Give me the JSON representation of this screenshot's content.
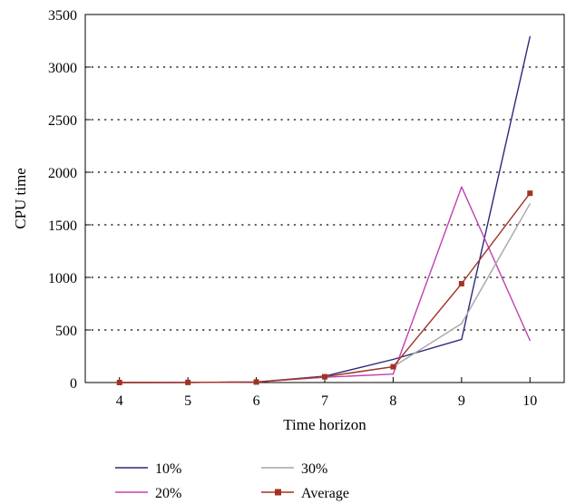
{
  "chart_data": {
    "type": "line",
    "xlabel": "Time horizon",
    "ylabel": "CPU time",
    "x": [
      4,
      5,
      6,
      7,
      8,
      9,
      10
    ],
    "xlim": [
      3.5,
      10.5
    ],
    "ylim": [
      0,
      3500
    ],
    "xticks": [
      "4",
      "5",
      "6",
      "7",
      "8",
      "9",
      "10"
    ],
    "yticks": [
      "0",
      "500",
      "1000",
      "1500",
      "2000",
      "2500",
      "3000",
      "3500"
    ],
    "grid": "horizontal-dotted",
    "legend_position": "bottom",
    "series": [
      {
        "name": "10%",
        "color": "#2a2a7a",
        "marker": "none",
        "values": [
          0,
          1,
          5,
          60,
          220,
          410,
          3290
        ]
      },
      {
        "name": "20%",
        "color": "#c040b0",
        "marker": "none",
        "values": [
          0,
          1,
          5,
          50,
          80,
          1860,
          400
        ]
      },
      {
        "name": "30%",
        "color": "#a6a6a6",
        "marker": "none",
        "values": [
          0,
          1,
          5,
          55,
          150,
          560,
          1700
        ]
      },
      {
        "name": "Average",
        "color": "#a33222",
        "marker": "square",
        "values": [
          0,
          1,
          5,
          55,
          150,
          940,
          1800
        ]
      }
    ]
  }
}
